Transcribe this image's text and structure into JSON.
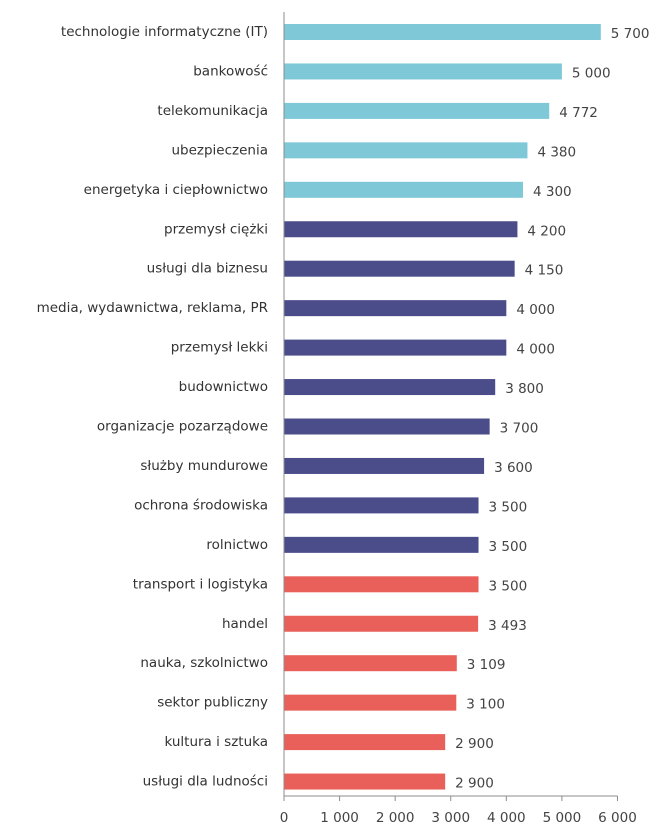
{
  "chart_data": {
    "type": "bar",
    "orientation": "horizontal",
    "categories": [
      "technologie informatyczne (IT)",
      "bankowość",
      "telekomunikacja",
      "ubezpieczenia",
      "energetyka i ciepłownictwo",
      "przemysł ciężki",
      "usługi dla biznesu",
      "media, wydawnictwa, reklama, PR",
      "przemysł lekki",
      "budownictwo",
      "organizacje pozarządowe",
      "służby mundurowe",
      "ochrona środowiska",
      "rolnictwo",
      "transport i logistyka",
      "handel",
      "nauka, szkolnictwo",
      "sektor publiczny",
      "kultura i sztuka",
      "usługi dla ludności"
    ],
    "values": [
      5700,
      5000,
      4772,
      4380,
      4300,
      4200,
      4150,
      4000,
      4000,
      3800,
      3700,
      3600,
      3500,
      3500,
      3500,
      3493,
      3109,
      3100,
      2900,
      2900
    ],
    "value_labels": [
      "5 700",
      "5 000",
      "4 772",
      "4 380",
      "4 300",
      "4 200",
      "4 150",
      "4 000",
      "4 000",
      "3 800",
      "3 700",
      "3 600",
      "3 500",
      "3 500",
      "3 500",
      "3 493",
      "3 109",
      "3 100",
      "2 900",
      "2 900"
    ],
    "bar_colors": [
      "#7ec8d8",
      "#7ec8d8",
      "#7ec8d8",
      "#7ec8d8",
      "#7ec8d8",
      "#4b4c8a",
      "#4b4c8a",
      "#4b4c8a",
      "#4b4c8a",
      "#4b4c8a",
      "#4b4c8a",
      "#4b4c8a",
      "#4b4c8a",
      "#4b4c8a",
      "#e9605a",
      "#e9605a",
      "#e9605a",
      "#e9605a",
      "#e9605a",
      "#e9605a"
    ],
    "xlim": [
      0,
      6000
    ],
    "x_ticks": [
      0,
      1000,
      2000,
      3000,
      4000,
      5000,
      6000
    ],
    "x_tick_labels": [
      "0",
      "1 000",
      "2 000",
      "3 000",
      "4 000",
      "5 000",
      "6 000"
    ],
    "title": "",
    "xlabel": "",
    "ylabel": "",
    "grid": false,
    "legend": "none"
  }
}
